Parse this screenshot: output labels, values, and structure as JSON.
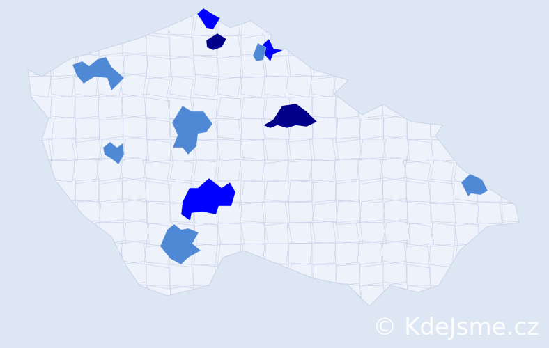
{
  "colors": {
    "background": "#dde6f3",
    "land": "#eef2fa",
    "border": "#c9d3ea",
    "level_high": "#00008b",
    "level_mid": "#0000ff",
    "level_low": "#4f88d4"
  },
  "highlighted_regions": [
    {
      "level": "level_mid"
    },
    {
      "level": "level_high"
    },
    {
      "level": "level_mid"
    },
    {
      "level": "level_low"
    },
    {
      "level": "level_low"
    },
    {
      "level": "level_high"
    },
    {
      "level": "level_low"
    },
    {
      "level": "level_low"
    },
    {
      "level": "level_mid"
    },
    {
      "level": "level_low"
    },
    {
      "level": "level_low"
    }
  ],
  "watermark": "© KdeJsme.cz"
}
